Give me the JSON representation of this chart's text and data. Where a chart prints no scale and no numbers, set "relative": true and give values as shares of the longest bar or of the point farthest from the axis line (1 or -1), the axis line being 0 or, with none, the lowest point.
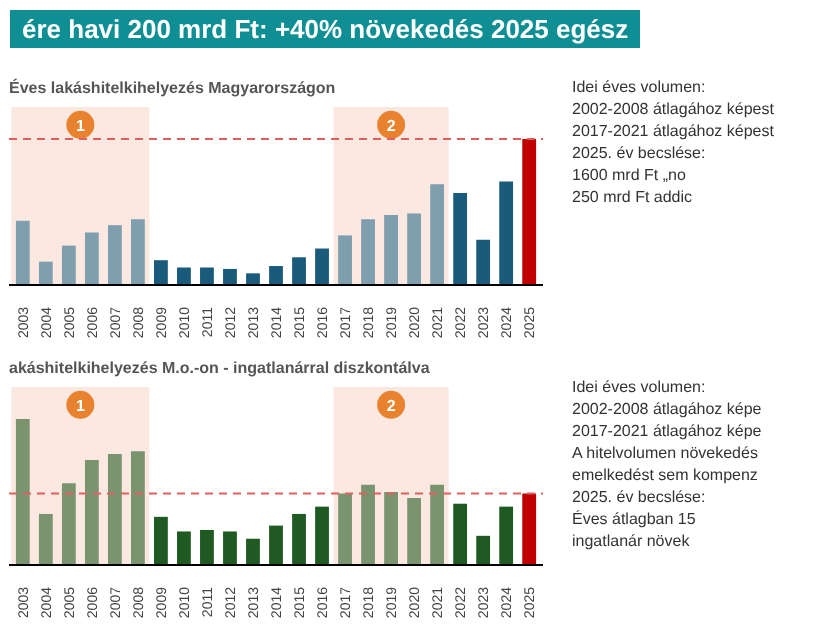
{
  "chart_data": [
    {
      "type": "other",
      "title": "ére havi 200 mrd Ft: +40% növekedés 2025 egész"
    },
    {
      "type": "bar",
      "title": "Éves lakáshitelkihelyezés Magyarországon",
      "relative": true,
      "categories": [
        "2003",
        "2004",
        "2005",
        "2006",
        "2007",
        "2008",
        "2009",
        "2010",
        "2011",
        "2012",
        "2013",
        "2014",
        "2015",
        "2016",
        "2017",
        "2018",
        "2019",
        "2020",
        "2021",
        "2022",
        "2023",
        "2024",
        "2025"
      ],
      "values": [
        0.44,
        0.16,
        0.27,
        0.36,
        0.41,
        0.45,
        0.17,
        0.12,
        0.12,
        0.11,
        0.08,
        0.13,
        0.19,
        0.25,
        0.34,
        0.45,
        0.48,
        0.49,
        0.69,
        0.63,
        0.31,
        0.71,
        1.0
      ],
      "colors": [
        "#7f9eae",
        "#7f9eae",
        "#7f9eae",
        "#7f9eae",
        "#7f9eae",
        "#7f9eae",
        "#1a5a7a",
        "#1a5a7a",
        "#1a5a7a",
        "#1a5a7a",
        "#1a5a7a",
        "#1a5a7a",
        "#1a5a7a",
        "#1a5a7a",
        "#7f9eae",
        "#7f9eae",
        "#7f9eae",
        "#7f9eae",
        "#7f9eae",
        "#1a5a7a",
        "#1a5a7a",
        "#1a5a7a",
        "#c00000"
      ],
      "ref_lines": [
        {
          "axis": "y",
          "value": 1.0,
          "color": "#e06060",
          "line_style": "dashed"
        }
      ],
      "bands": [
        {
          "axis": "x",
          "from": "2003",
          "to": "2008",
          "label": "1",
          "color": "#fbe9e1"
        },
        {
          "axis": "x",
          "from": "2017",
          "to": "2021",
          "label": "2",
          "color": "#fbe9e1"
        }
      ]
    },
    {
      "type": "bar",
      "title": "akáshitelkihelyezés M.o.-on - ingatlanárral diszkontálva",
      "relative": true,
      "categories": [
        "2003",
        "2004",
        "2005",
        "2006",
        "2007",
        "2008",
        "2009",
        "2010",
        "2011",
        "2012",
        "2013",
        "2014",
        "2015",
        "2016",
        "2017",
        "2018",
        "2019",
        "2020",
        "2021",
        "2022",
        "2023",
        "2024",
        "2025"
      ],
      "values": [
        1.0,
        0.35,
        0.56,
        0.72,
        0.76,
        0.78,
        0.33,
        0.23,
        0.24,
        0.23,
        0.18,
        0.27,
        0.35,
        0.4,
        0.49,
        0.55,
        0.5,
        0.46,
        0.55,
        0.42,
        0.2,
        0.4,
        0.49
      ],
      "colors": [
        "#7a9470",
        "#7a9470",
        "#7a9470",
        "#7a9470",
        "#7a9470",
        "#7a9470",
        "#1f5a23",
        "#1f5a23",
        "#1f5a23",
        "#1f5a23",
        "#1f5a23",
        "#1f5a23",
        "#1f5a23",
        "#1f5a23",
        "#7a9470",
        "#7a9470",
        "#7a9470",
        "#7a9470",
        "#7a9470",
        "#1f5a23",
        "#1f5a23",
        "#1f5a23",
        "#c00000"
      ],
      "ref_lines": [
        {
          "axis": "y",
          "value": 0.49,
          "color": "#e06060",
          "line_style": "dashed"
        }
      ],
      "bands": [
        {
          "axis": "x",
          "from": "2003",
          "to": "2008",
          "label": "1",
          "color": "#fbe9e1"
        },
        {
          "axis": "x",
          "from": "2017",
          "to": "2021",
          "label": "2",
          "color": "#fbe9e1"
        }
      ]
    },
    {
      "type": "other",
      "annotations": [
        "Idei éves volumen:",
        "2002-2008 átlagához képest",
        "2017-2021 átlagához képest",
        "2025. év becslése:",
        "1600 mrd Ft „no",
        "250 mrd Ft addic"
      ]
    },
    {
      "type": "other",
      "annotations": [
        "Idei éves volumen:",
        "2002-2008 átlagához képe",
        "2017-2021 átlagához képe",
        "A hitelvolumen növekedés",
        "emelkedést sem kompenz",
        "2025. év becslése:",
        "Éves átlagban 15",
        "ingatlanár növek"
      ]
    }
  ]
}
